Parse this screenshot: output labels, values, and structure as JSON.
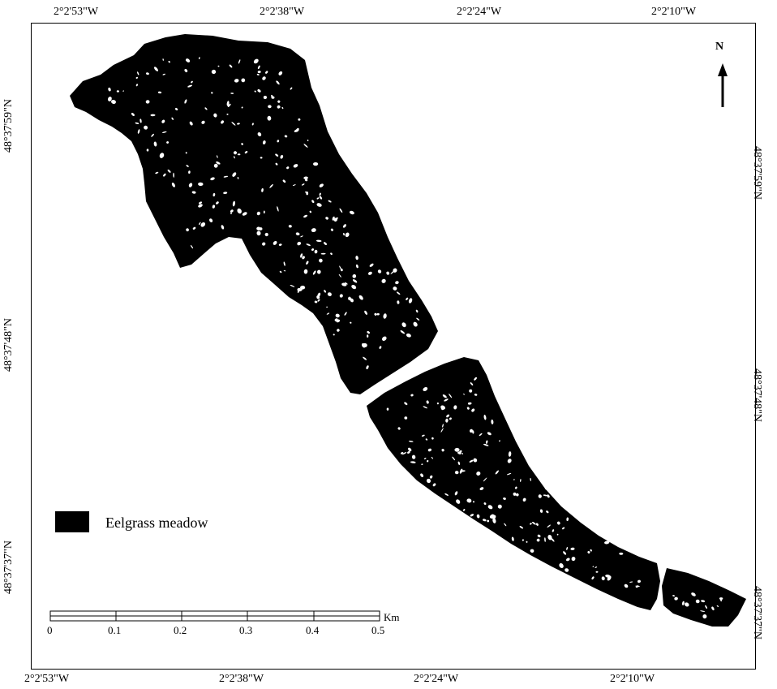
{
  "top_coords": [
    "2°2'53\"W",
    "2°2'38\"W",
    "2°2'24\"W",
    "2°2'10\"W"
  ],
  "bottom_coords": [
    "2°2'53\"W",
    "2°2'38\"W",
    "2°2'24\"W",
    "2°2'10\"W"
  ],
  "left_coords": [
    "48°37'59\"N",
    "48°37'48\"N",
    "48°37'37\"N"
  ],
  "right_coords": [
    "48°37'59\"N",
    "48°37'48\"N",
    "48°37'37\"N"
  ],
  "north_arrow": {
    "label": "N",
    "icon": "north-arrow-icon"
  },
  "legend": {
    "label": "Eelgrass meadow",
    "color": "#000000"
  },
  "scale_bar": {
    "ticks": [
      "0",
      "0.1",
      "0.2",
      "0.3",
      "0.4",
      "0.5"
    ],
    "unit": "Km"
  },
  "colors": {
    "meadow": "#000000",
    "background": "#ffffff"
  }
}
